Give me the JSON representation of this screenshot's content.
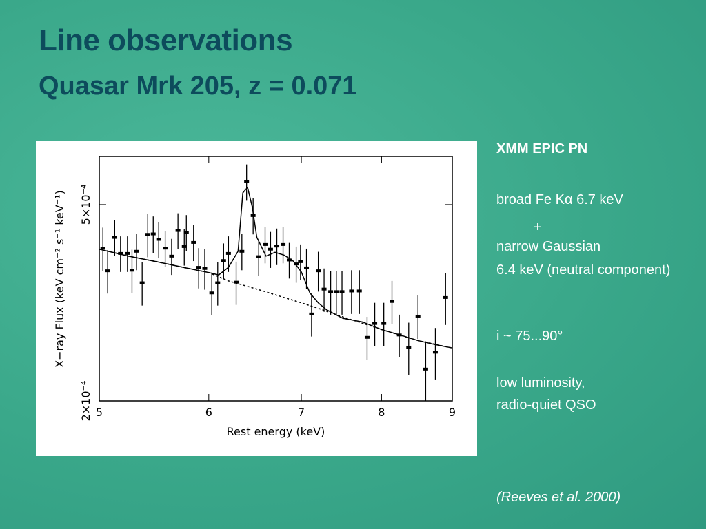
{
  "title": "Line observations",
  "subtitle": "Quasar Mrk 205, z = 0.071",
  "notes": [
    "XMM EPIC PN",
    "broad Fe Kα 6.7 keV",
    "+",
    "narrow Gaussian",
    "6.4 keV (neutral component)",
    "i ~ 75...90°",
    "low luminosity,",
    "radio-quiet QSO"
  ],
  "citation": "(Reeves et al. 2000)",
  "chart_data": {
    "type": "scatter",
    "x_label": "Rest energy (keV)",
    "y_label": "X−ray Flux (keV cm⁻² s⁻¹ keV⁻¹)",
    "xlim": [
      5,
      9
    ],
    "xticks": [
      5,
      6,
      7,
      8,
      9
    ],
    "xscale": "log",
    "ylim": [
      0.0002,
      0.000626
    ],
    "yticks": [
      {
        "value": 0.0002,
        "label": "2×10⁻⁴"
      },
      {
        "value": 0.0005,
        "label": "5×10⁻⁴"
      }
    ],
    "yscale": "log",
    "series": [
      {
        "style": "points",
        "color": "#000000",
        "x": [
          5.03,
          5.07,
          5.13,
          5.18,
          5.24,
          5.28,
          5.32,
          5.37,
          5.42,
          5.47,
          5.52,
          5.58,
          5.64,
          5.7,
          5.76,
          5.78,
          5.85,
          5.9,
          5.96,
          6.03,
          6.09,
          6.15,
          6.2,
          6.28,
          6.34,
          6.39,
          6.46,
          6.52,
          6.59,
          6.65,
          6.72,
          6.79,
          6.86,
          6.94,
          6.99,
          7.06,
          7.12,
          7.2,
          7.27,
          7.35,
          7.42,
          7.49,
          7.61,
          7.71,
          7.81,
          7.91,
          8.03,
          8.14,
          8.24,
          8.37,
          8.5,
          8.61,
          8.75,
          8.9
        ],
        "values": [
          0.000408,
          0.000367,
          0.000429,
          0.000398,
          0.000398,
          0.000368,
          0.000402,
          0.000347,
          0.000435,
          0.000436,
          0.000425,
          0.000408,
          0.000393,
          0.000443,
          0.000411,
          0.000439,
          0.000419,
          0.000373,
          0.000371,
          0.000331,
          0.000347,
          0.000385,
          0.000398,
          0.000348,
          0.000402,
          0.000556,
          0.000475,
          0.000392,
          0.000415,
          0.000406,
          0.000412,
          0.000415,
          0.000386,
          0.000379,
          0.000383,
          0.000372,
          0.0003,
          0.000367,
          0.000337,
          0.000333,
          0.000333,
          0.000333,
          0.000334,
          0.000334,
          0.000269,
          0.000287,
          0.000287,
          0.000318,
          0.000272,
          0.000257,
          0.000297,
          0.000232,
          0.000251,
          0.000324
        ],
        "errors": [
          4.1e-05,
          3.7e-05,
          3.6e-05,
          3.3e-05,
          3.3e-05,
          3.7e-05,
          3.4e-05,
          3.5e-05,
          4.4e-05,
          3.7e-05,
          3.6e-05,
          3.4e-05,
          3.3e-05,
          3.7e-05,
          3.5e-05,
          3.7e-05,
          3.5e-05,
          3.5e-05,
          3.5e-05,
          3.3e-05,
          3.5e-05,
          3.2e-05,
          3.3e-05,
          3.5e-05,
          3.4e-05,
          4.7e-05,
          4e-05,
          3.3e-05,
          3.5e-05,
          3.4e-05,
          3.5e-05,
          3.5e-05,
          3.2e-05,
          3.2e-05,
          3.2e-05,
          3.5e-05,
          3e-05,
          3.4e-05,
          3.4e-05,
          3.4e-05,
          3.4e-05,
          3.4e-05,
          3.4e-05,
          3.4e-05,
          2.7e-05,
          2.9e-05,
          2.9e-05,
          3.2e-05,
          2.7e-05,
          3.1e-05,
          3e-05,
          3.2e-05,
          3e-05,
          3.9e-05
        ]
      },
      {
        "style": "solid",
        "color": "#000000",
        "x": [
          5.0,
          5.25,
          5.5,
          5.75,
          6.0,
          6.1,
          6.2,
          6.3,
          6.35,
          6.4,
          6.45,
          6.5,
          6.6,
          6.7,
          6.8,
          6.9,
          7.0,
          7.1,
          7.2,
          7.3,
          7.5,
          7.75,
          8.0,
          8.25,
          8.5,
          8.75,
          9.0
        ],
        "values": [
          0.000406,
          0.000393,
          0.000383,
          0.000373,
          0.000364,
          0.00036,
          0.000373,
          0.000402,
          0.000528,
          0.000542,
          0.000495,
          0.000429,
          0.000393,
          0.0004,
          0.000395,
          0.000385,
          0.000365,
          0.000331,
          0.000316,
          0.000306,
          0.000294,
          0.000289,
          0.000279,
          0.000272,
          0.000265,
          0.00026,
          0.000256
        ]
      },
      {
        "style": "dashed",
        "color": "#000000",
        "x": [
          5.0,
          5.25,
          5.5,
          5.75,
          6.0,
          6.2,
          6.5,
          6.8,
          7.0,
          7.2,
          7.5,
          8.0,
          8.5,
          9.0
        ],
        "values": [
          0.000406,
          0.000393,
          0.000383,
          0.000373,
          0.000364,
          0.00035,
          0.000337,
          0.000324,
          0.000316,
          0.000308,
          0.000296,
          0.000279,
          0.000265,
          0.000256
        ]
      }
    ]
  }
}
